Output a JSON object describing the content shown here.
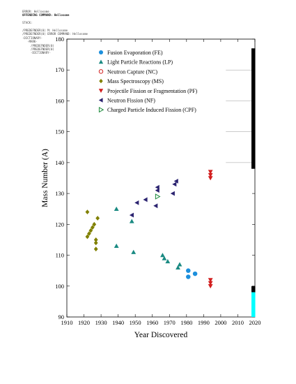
{
  "header": {
    "lines": [
      {
        "text": "ERROR: Hellosome",
        "bold": false
      },
      {
        "text": "OFFENDING COMMAND: Hellosome",
        "bold": true
      },
      {
        "text": "",
        "bold": false
      },
      {
        "text": "STACK:",
        "bold": false
      },
      {
        "text": "",
        "bold": false
      },
      {
        "text": "/PREDEFNDER(0) M: Hellosome",
        "bold": false
      },
      {
        "text": "/PREDEFNDER(0) ERROR COMMAND: Hellosome",
        "bold": false
      },
      {
        "text": "-DICTIONARY-",
        "bold": false
      },
      {
        "text": "   -MARK-",
        "bold": false
      },
      {
        "text": "     /PREDEFNDER(0)",
        "bold": false
      },
      {
        "text": "     /PREDEFNDER(0)",
        "bold": false
      },
      {
        "text": "     -DICTIONARY-",
        "bold": false
      }
    ]
  },
  "colors": {
    "FE": "#1c8fdc",
    "LP": "#1a8a82",
    "NC": "#d21e1e",
    "MS": "#808000",
    "PF": "#d21e1e",
    "NF": "#2b2370",
    "CPF": "#1a8a3a",
    "bar_black": "#000000",
    "bar_cyan": "#00ffff"
  },
  "chart_data": {
    "type": "scatter",
    "xlabel": "Year Discovered",
    "ylabel": "Mass Number (A)",
    "xlim": [
      1910,
      2020
    ],
    "ylim": [
      90,
      180
    ],
    "xticks": [
      1910,
      1920,
      1930,
      1940,
      1950,
      1960,
      1970,
      1980,
      1990,
      2000,
      2010,
      2020
    ],
    "yticks": [
      90,
      100,
      110,
      120,
      130,
      140,
      150,
      160,
      170,
      180
    ],
    "legend_position": "top-left",
    "series": [
      {
        "key": "FE",
        "name": "Fusion Evaporation (FE)",
        "marker": "circle",
        "points": [
          [
            1981,
            105
          ],
          [
            1981,
            103
          ],
          [
            1985,
            104
          ]
        ]
      },
      {
        "key": "LP",
        "name": "Light Particle Reactions (LP)",
        "marker": "triangle-up",
        "points": [
          [
            1939,
            125
          ],
          [
            1939,
            113
          ],
          [
            1948,
            121
          ],
          [
            1949,
            111
          ],
          [
            1966,
            110
          ],
          [
            1967,
            109
          ],
          [
            1969,
            108
          ],
          [
            1975,
            106
          ],
          [
            1976,
            107
          ]
        ]
      },
      {
        "key": "NC",
        "name": "Neutron Capture (NC)",
        "marker": "circle-open",
        "points": []
      },
      {
        "key": "MS",
        "name": "Mass Spectroscopy (MS)",
        "marker": "diamond",
        "points": [
          [
            1922,
            124
          ],
          [
            1922,
            116
          ],
          [
            1923,
            117
          ],
          [
            1924,
            118
          ],
          [
            1925,
            119
          ],
          [
            1926,
            120
          ],
          [
            1927,
            115
          ],
          [
            1927,
            114
          ],
          [
            1927,
            112
          ],
          [
            1928,
            122
          ]
        ]
      },
      {
        "key": "PF",
        "name": "Projectile Fission or Fragmentation (PF)",
        "marker": "triangle-down",
        "points": [
          [
            1994,
            137
          ],
          [
            1994,
            136
          ],
          [
            1994,
            135
          ],
          [
            1994,
            102
          ],
          [
            1994,
            101
          ],
          [
            1994,
            100
          ]
        ]
      },
      {
        "key": "NF",
        "name": "Neutron Fission (NF)",
        "marker": "triangle-left",
        "points": [
          [
            1948,
            123
          ],
          [
            1951,
            127
          ],
          [
            1956,
            128
          ],
          [
            1962,
            126
          ],
          [
            1963,
            132
          ],
          [
            1963,
            131
          ],
          [
            1972,
            130
          ],
          [
            1973,
            133
          ],
          [
            1974,
            134
          ]
        ]
      },
      {
        "key": "CPF",
        "name": "Charged Particle Induced Fission (CPF)",
        "marker": "triangle-right-open",
        "points": [
          [
            1963,
            129
          ]
        ]
      }
    ],
    "bars": [
      {
        "x": 2019,
        "from": 138,
        "to": 177,
        "color": "bar_black"
      },
      {
        "x": 2019,
        "from": 98,
        "to": 100,
        "color": "bar_black"
      },
      {
        "x": 2019,
        "from": 90,
        "to": 98,
        "color": "bar_cyan"
      }
    ]
  }
}
